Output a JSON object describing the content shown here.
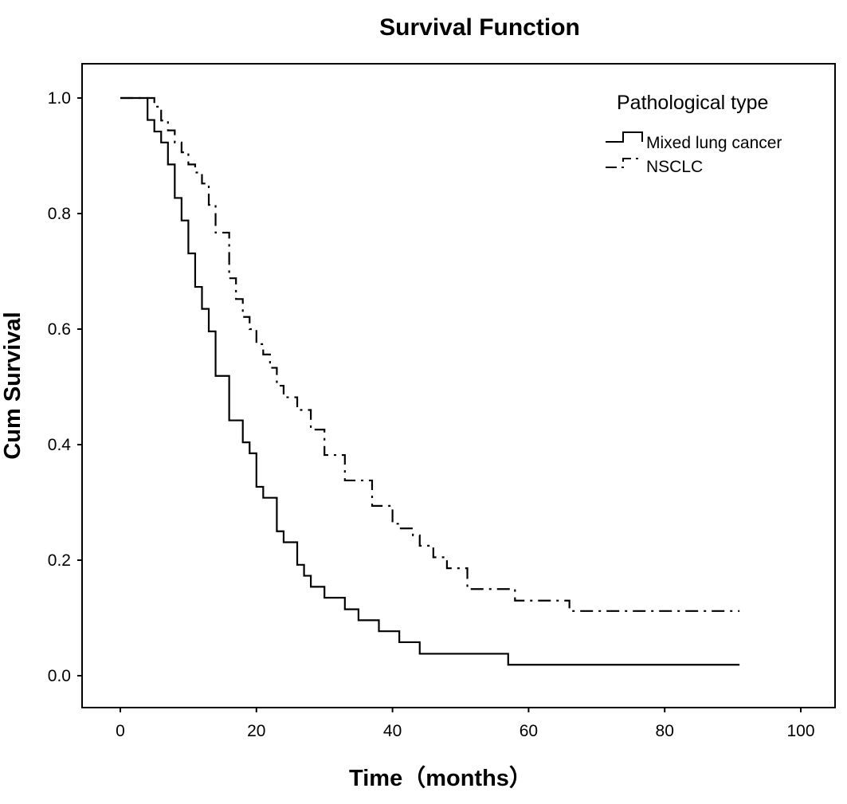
{
  "chart_data": {
    "type": "line",
    "step": true,
    "title": "Survival Function",
    "xlabel": "Time（months）",
    "ylabel": "Cum Survival",
    "xlim": [
      0,
      100
    ],
    "ylim": [
      0,
      1.0
    ],
    "xticks": [
      0,
      20,
      40,
      60,
      80,
      100
    ],
    "yticks": [
      "0.0",
      "0.2",
      "0.4",
      "0.6",
      "0.8",
      "1.0"
    ],
    "grid": false,
    "legend": {
      "title": "Pathological type",
      "position": "top-right"
    },
    "series": [
      {
        "name": "Mixed lung cancer",
        "style": "solid",
        "color": "#000000",
        "x": [
          0,
          4,
          5,
          6,
          7,
          8,
          9,
          10,
          11,
          12,
          13,
          14,
          16,
          18,
          19,
          20,
          21,
          23,
          24,
          26,
          27,
          28,
          30,
          31,
          33,
          35,
          38,
          41,
          44,
          57,
          91
        ],
        "y": [
          1.0,
          0.962,
          0.942,
          0.923,
          0.885,
          0.827,
          0.788,
          0.731,
          0.673,
          0.635,
          0.596,
          0.519,
          0.442,
          0.404,
          0.385,
          0.327,
          0.308,
          0.25,
          0.231,
          0.192,
          0.173,
          0.154,
          0.135,
          0.135,
          0.115,
          0.096,
          0.077,
          0.058,
          0.038,
          0.019,
          0.019
        ]
      },
      {
        "name": "NSCLC",
        "style": "dash-dot",
        "color": "#000000",
        "x": [
          0,
          5,
          6,
          7,
          8,
          9,
          10,
          11,
          12,
          13,
          14,
          16,
          17,
          18,
          19,
          20,
          21,
          22,
          23,
          24,
          26,
          28,
          30,
          33,
          37,
          40,
          41,
          43,
          44,
          46,
          48,
          51,
          58,
          66,
          91
        ],
        "y": [
          1.0,
          0.985,
          0.961,
          0.944,
          0.923,
          0.906,
          0.885,
          0.871,
          0.852,
          0.815,
          0.767,
          0.688,
          0.652,
          0.621,
          0.6,
          0.574,
          0.556,
          0.533,
          0.502,
          0.482,
          0.46,
          0.426,
          0.382,
          0.338,
          0.294,
          0.263,
          0.255,
          0.243,
          0.225,
          0.205,
          0.186,
          0.15,
          0.13,
          0.112,
          0.112
        ]
      }
    ]
  }
}
